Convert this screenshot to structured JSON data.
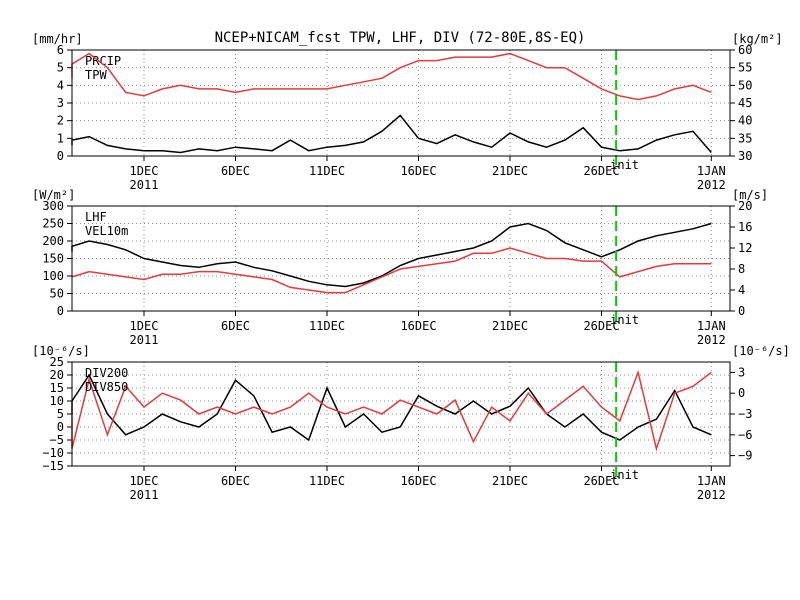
{
  "title": "NCEP+NICAM_fcst TPW, LHF, DIV (72-80E,8S-EQ)",
  "x_axis": {
    "day_labels": [
      "1DEC",
      "6DEC",
      "11DEC",
      "16DEC",
      "21DEC",
      "26DEC",
      "1JAN"
    ],
    "year_labels": [
      "2011",
      "2012"
    ]
  },
  "init_label": "init",
  "colors": {
    "black_series": "#000000",
    "red_series": "#e03c3c",
    "init_line": "#00d000"
  },
  "chart_data": [
    {
      "type": "line",
      "left_unit": "[mm/hr]",
      "right_unit": "[kg/m²]",
      "left_ticks": [
        "0",
        "1",
        "2",
        "3",
        "4",
        "5",
        "6"
      ],
      "right_ticks": [
        "30",
        "35",
        "40",
        "45",
        "50",
        "55",
        "60"
      ],
      "left_range": [
        0,
        6
      ],
      "right_range": [
        30,
        60
      ],
      "grid": true,
      "legend": "top-left",
      "series": [
        {
          "name": "PRCIP",
          "axis": "left",
          "color": "#000000",
          "x": [
            -4,
            -3,
            -2,
            -1,
            0,
            1,
            2,
            3,
            4,
            5,
            6,
            7,
            8,
            9,
            10,
            11,
            12,
            13,
            14,
            15,
            16,
            17,
            18,
            19,
            20,
            21,
            22,
            23,
            24,
            25,
            26,
            27,
            28,
            29,
            30,
            31,
            32
          ],
          "y": [
            0.6,
            0.9,
            1.1,
            0.6,
            0.4,
            0.3,
            0.3,
            0.2,
            0.4,
            0.3,
            0.5,
            0.4,
            0.3,
            0.9,
            0.3,
            0.5,
            0.6,
            0.8,
            1.4,
            2.3,
            1.0,
            0.7,
            1.2,
            0.8,
            0.5,
            1.3,
            0.8,
            0.5,
            0.9,
            1.6,
            0.5,
            0.3,
            0.4,
            0.9,
            1.2,
            1.4,
            0.2
          ]
        },
        {
          "name": "TPW",
          "axis": "right",
          "color": "#e03c3c",
          "x": [
            -4,
            -3,
            -2,
            -1,
            0,
            1,
            2,
            3,
            4,
            5,
            6,
            7,
            8,
            9,
            10,
            11,
            12,
            13,
            14,
            15,
            16,
            17,
            18,
            19,
            20,
            21,
            22,
            23,
            24,
            25,
            26,
            27,
            28,
            29,
            30,
            31,
            32
          ],
          "y": [
            52,
            56,
            59,
            55,
            48,
            47,
            49,
            50,
            49,
            49,
            48,
            49,
            49,
            49,
            49,
            49,
            50,
            51,
            52,
            55,
            57,
            57,
            58,
            58,
            58,
            59,
            57,
            55,
            55,
            52,
            49,
            47,
            46,
            47,
            49,
            50,
            48
          ]
        }
      ]
    },
    {
      "type": "line",
      "left_unit": "[W/m²]",
      "right_unit": "[m/s]",
      "left_ticks": [
        "0",
        "50",
        "100",
        "150",
        "200",
        "250",
        "300"
      ],
      "right_ticks": [
        "0",
        "4",
        "8",
        "12",
        "16",
        "20"
      ],
      "left_range": [
        0,
        300
      ],
      "right_range": [
        0,
        20
      ],
      "grid": true,
      "legend": "top-left",
      "series": [
        {
          "name": "LHF",
          "axis": "left",
          "color": "#000000",
          "x": [
            -4,
            -3,
            -2,
            -1,
            0,
            1,
            2,
            3,
            4,
            5,
            6,
            7,
            8,
            9,
            10,
            11,
            12,
            13,
            14,
            15,
            16,
            17,
            18,
            19,
            20,
            21,
            22,
            23,
            24,
            25,
            26,
            27,
            28,
            29,
            30,
            31,
            32
          ],
          "y": [
            170,
            185,
            200,
            190,
            175,
            150,
            140,
            130,
            125,
            135,
            140,
            125,
            115,
            100,
            85,
            75,
            70,
            80,
            100,
            130,
            150,
            160,
            170,
            180,
            200,
            240,
            250,
            230,
            195,
            175,
            155,
            175,
            200,
            215,
            225,
            235,
            250
          ]
        },
        {
          "name": "VEL10m",
          "axis": "right",
          "color": "#e03c3c",
          "x": [
            -4,
            -3,
            -2,
            -1,
            0,
            1,
            2,
            3,
            4,
            5,
            6,
            7,
            8,
            9,
            10,
            11,
            12,
            13,
            14,
            15,
            16,
            17,
            18,
            19,
            20,
            21,
            22,
            23,
            24,
            25,
            26,
            27,
            28,
            29,
            30,
            31,
            32
          ],
          "y": [
            6.5,
            6.5,
            7.5,
            7,
            6.5,
            6,
            7,
            7,
            7.5,
            7.5,
            7,
            6.5,
            6,
            4.5,
            4,
            3.5,
            3.5,
            5,
            6.5,
            8,
            8.5,
            9,
            9.5,
            11,
            11,
            12,
            11,
            10,
            10,
            9.5,
            9.5,
            6.5,
            7.5,
            8.5,
            9,
            9,
            9
          ]
        }
      ]
    },
    {
      "type": "line",
      "left_unit": "[10⁻⁶/s]",
      "right_unit": "[10⁻⁶/s]",
      "left_ticks": [
        "−15",
        "−10",
        "−5",
        "0",
        "5",
        "10",
        "15",
        "20",
        "25"
      ],
      "right_ticks": [
        "−9",
        "−6",
        "−3",
        "0",
        "3"
      ],
      "left_range": [
        -15,
        25
      ],
      "right_range": [
        -10.5,
        4.5
      ],
      "grid": true,
      "legend": "top-left",
      "series": [
        {
          "name": "DIV200",
          "axis": "left",
          "color": "#000000",
          "x": [
            -4,
            -3,
            -2,
            -1,
            0,
            1,
            2,
            3,
            4,
            5,
            6,
            7,
            8,
            9,
            10,
            11,
            12,
            13,
            14,
            15,
            16,
            17,
            18,
            19,
            20,
            21,
            22,
            23,
            24,
            25,
            26,
            27,
            28,
            29,
            30,
            31,
            32
          ],
          "y": [
            5,
            10,
            20,
            5,
            -3,
            0,
            5,
            2,
            0,
            5,
            18,
            12,
            -2,
            0,
            -5,
            15,
            0,
            5,
            -2,
            0,
            12,
            8,
            5,
            10,
            5,
            8,
            15,
            5,
            0,
            5,
            -2,
            -5,
            0,
            3,
            14,
            0,
            -3
          ]
        },
        {
          "name": "DIV850",
          "axis": "right",
          "color": "#e03c3c",
          "x": [
            -4,
            -3,
            -2,
            -1,
            0,
            1,
            2,
            3,
            4,
            5,
            6,
            7,
            8,
            9,
            10,
            11,
            12,
            13,
            14,
            15,
            16,
            17,
            18,
            19,
            20,
            21,
            22,
            23,
            24,
            25,
            26,
            27,
            28,
            29,
            30,
            31,
            32
          ],
          "y": [
            -3,
            -8,
            2,
            -6,
            1,
            -2,
            0,
            -1,
            -3,
            -2,
            -3,
            -2,
            -3,
            -2,
            0,
            -2,
            -3,
            -2,
            -3,
            -1,
            -2,
            -3,
            -1,
            -7,
            -2,
            -4,
            0,
            -3,
            -1,
            1,
            -2,
            -4,
            3,
            -8,
            0,
            1,
            3
          ]
        }
      ]
    }
  ]
}
